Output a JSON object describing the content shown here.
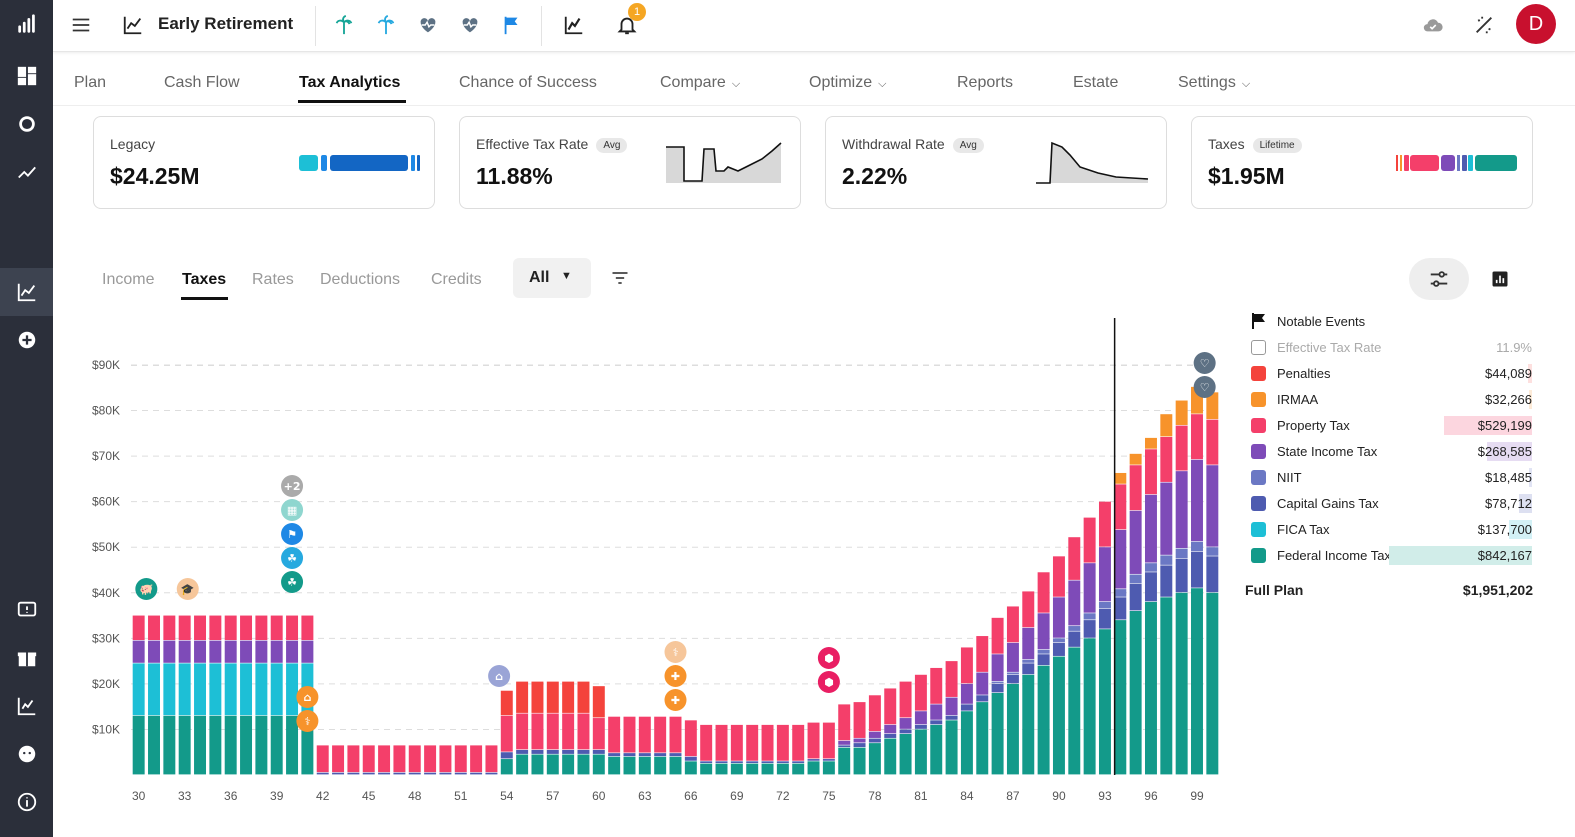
{
  "app": {
    "title": "Early Retirement",
    "notification_count": "1",
    "avatar_initial": "D"
  },
  "icons": {
    "palm": "palm-tree-icon",
    "heart": "heartbeat-icon",
    "flag": "flag-icon"
  },
  "nav": {
    "tabs": [
      {
        "label": "Plan"
      },
      {
        "label": "Cash Flow"
      },
      {
        "label": "Tax Analytics"
      },
      {
        "label": "Chance of Success"
      },
      {
        "label": "Compare"
      },
      {
        "label": "Optimize"
      },
      {
        "label": "Reports"
      },
      {
        "label": "Estate"
      },
      {
        "label": "Settings"
      }
    ],
    "active": "Tax Analytics"
  },
  "cards": [
    {
      "label": "Legacy",
      "pill": "",
      "value": "$24.25M"
    },
    {
      "label": "Effective Tax Rate",
      "pill": "Avg",
      "value": "11.88%"
    },
    {
      "label": "Withdrawal Rate",
      "pill": "Avg",
      "value": "2.22%"
    },
    {
      "label": "Taxes",
      "pill": "Lifetime",
      "value": "$1.95M"
    }
  ],
  "subtabs": [
    {
      "label": "Income"
    },
    {
      "label": "Taxes"
    },
    {
      "label": "Rates"
    },
    {
      "label": "Deductions"
    },
    {
      "label": "Credits"
    }
  ],
  "filter": {
    "selected": "All"
  },
  "legend": {
    "rows": [
      {
        "name": "Notable Events",
        "value": ""
      },
      {
        "name": "Effective Tax Rate",
        "value": "11.9%"
      },
      {
        "name": "Penalties",
        "value": "$44,089",
        "color": "#f4433c"
      },
      {
        "name": "IRMAA",
        "value": "$32,266",
        "color": "#f7932b"
      },
      {
        "name": "Property Tax",
        "value": "$529,199",
        "color": "#f43f6a"
      },
      {
        "name": "State Income Tax",
        "value": "$268,585",
        "color": "#7e4bb8"
      },
      {
        "name": "NIIT",
        "value": "$18,485",
        "color": "#6b78c4"
      },
      {
        "name": "Capital Gains Tax",
        "value": "$78,712",
        "color": "#4e5bb0"
      },
      {
        "name": "FICA Tax",
        "value": "$137,700",
        "color": "#1dbfd6"
      },
      {
        "name": "Federal Income Tax",
        "value": "$842,167",
        "color": "#139a8a"
      }
    ],
    "full_plan_label": "Full Plan",
    "full_plan_value": "$1,951,202"
  },
  "chart_data": {
    "type": "bar",
    "stacked": true,
    "x_start_age": 30,
    "x": [
      30,
      31,
      32,
      33,
      34,
      35,
      36,
      37,
      38,
      39,
      40,
      41,
      42,
      43,
      44,
      45,
      46,
      47,
      48,
      49,
      50,
      51,
      52,
      53,
      54,
      55,
      56,
      57,
      58,
      59,
      60,
      61,
      62,
      63,
      64,
      65,
      66,
      67,
      68,
      69,
      70,
      71,
      72,
      73,
      74,
      75,
      76,
      77,
      78,
      79,
      80,
      81,
      82,
      83,
      84,
      85,
      86,
      87,
      88,
      89,
      90,
      91,
      92,
      93,
      94,
      95,
      96,
      97,
      98,
      99,
      100
    ],
    "x_tick_labels": [
      "30",
      "33",
      "36",
      "39",
      "42",
      "45",
      "48",
      "51",
      "54",
      "57",
      "60",
      "63",
      "66",
      "69",
      "72",
      "75",
      "78",
      "81",
      "84",
      "87",
      "90",
      "93",
      "96",
      "99"
    ],
    "y_tick_labels": [
      "$10K",
      "$20K",
      "$30K",
      "$40K",
      "$50K",
      "$60K",
      "$70K",
      "$80K",
      "$90K"
    ],
    "ylim": [
      0,
      100000
    ],
    "grid": true,
    "series": [
      {
        "name": "Federal Income Tax",
        "color": "#139a8a",
        "values": [
          13000,
          13000,
          13000,
          13000,
          13000,
          13000,
          13000,
          13000,
          13000,
          13000,
          13000,
          13000,
          0,
          0,
          0,
          0,
          0,
          0,
          0,
          0,
          0,
          0,
          0,
          0,
          3500,
          4500,
          4500,
          4500,
          4500,
          4500,
          4500,
          4000,
          4000,
          4000,
          4000,
          4000,
          3000,
          2500,
          2500,
          2500,
          2500,
          2500,
          2500,
          2500,
          3000,
          3000,
          6000,
          6000,
          7000,
          8000,
          9000,
          10000,
          11000,
          12000,
          14000,
          16000,
          18000,
          20000,
          22000,
          24000,
          26000,
          28000,
          30000,
          32000,
          34000,
          36000,
          38000,
          39000,
          40000,
          41000,
          40000
        ]
      },
      {
        "name": "FICA Tax",
        "color": "#1dbfd6",
        "values": [
          11500,
          11500,
          11500,
          11500,
          11500,
          11500,
          11500,
          11500,
          11500,
          11500,
          11500,
          11500,
          0,
          0,
          0,
          0,
          0,
          0,
          0,
          0,
          0,
          0,
          0,
          0,
          0,
          0,
          0,
          0,
          0,
          0,
          0,
          0,
          0,
          0,
          0,
          0,
          0,
          0,
          0,
          0,
          0,
          0,
          0,
          0,
          0,
          0,
          0,
          0,
          0,
          0,
          0,
          0,
          0,
          0,
          0,
          0,
          0,
          0,
          0,
          0,
          0,
          0,
          0,
          0,
          0,
          0,
          0,
          0,
          0,
          0,
          0
        ]
      },
      {
        "name": "Capital Gains Tax",
        "color": "#4e5bb0",
        "values": [
          0,
          0,
          0,
          0,
          0,
          0,
          0,
          0,
          0,
          0,
          0,
          0,
          500,
          500,
          500,
          500,
          500,
          500,
          500,
          500,
          500,
          500,
          500,
          500,
          1500,
          1000,
          1000,
          1000,
          1000,
          1000,
          1000,
          800,
          800,
          800,
          800,
          800,
          1000,
          500,
          500,
          500,
          500,
          500,
          500,
          500,
          500,
          500,
          500,
          1000,
          1000,
          1000,
          1000,
          1000,
          1000,
          1000,
          1500,
          1500,
          2000,
          2000,
          2500,
          2500,
          3000,
          3500,
          4000,
          4500,
          5000,
          6000,
          6500,
          7000,
          7500,
          8000,
          8000
        ]
      },
      {
        "name": "NIIT",
        "color": "#6b78c4",
        "values": [
          0,
          0,
          0,
          0,
          0,
          0,
          0,
          0,
          0,
          0,
          0,
          0,
          0,
          0,
          0,
          0,
          0,
          0,
          0,
          0,
          0,
          0,
          0,
          0,
          0,
          0,
          0,
          0,
          0,
          0,
          0,
          0,
          0,
          0,
          0,
          0,
          0,
          0,
          0,
          0,
          0,
          0,
          0,
          0,
          0,
          0,
          0,
          0,
          0,
          0,
          0,
          0,
          0,
          0,
          0,
          0,
          500,
          500,
          800,
          1000,
          1000,
          1200,
          1500,
          1500,
          1800,
          2000,
          2000,
          2200,
          2200,
          2200,
          2000
        ]
      },
      {
        "name": "State Income Tax",
        "color": "#7e4bb8",
        "values": [
          5000,
          5000,
          5000,
          5000,
          5000,
          5000,
          5000,
          5000,
          5000,
          5000,
          5000,
          5000,
          0,
          0,
          0,
          0,
          0,
          0,
          0,
          0,
          0,
          0,
          0,
          0,
          0,
          0,
          0,
          0,
          0,
          0,
          0,
          0,
          0,
          0,
          0,
          0,
          0,
          0,
          0,
          0,
          0,
          0,
          0,
          0,
          0,
          0,
          1000,
          1000,
          1500,
          2000,
          2500,
          3000,
          3500,
          4000,
          4500,
          5000,
          6000,
          6500,
          7000,
          8000,
          9000,
          10000,
          11000,
          12000,
          13000,
          14000,
          15000,
          16000,
          17000,
          18000,
          18000
        ]
      },
      {
        "name": "Property Tax",
        "color": "#f43f6a",
        "values": [
          5500,
          5500,
          5500,
          5500,
          5500,
          5500,
          5500,
          5500,
          5500,
          5500,
          5500,
          5500,
          6000,
          6000,
          6000,
          6000,
          6000,
          6000,
          6000,
          6000,
          6000,
          6000,
          6000,
          6000,
          8000,
          8000,
          8000,
          8000,
          8000,
          8000,
          7000,
          8000,
          8000,
          8000,
          8000,
          8000,
          8000,
          8000,
          8000,
          8000,
          8000,
          8000,
          8000,
          8000,
          8000,
          8000,
          8000,
          8000,
          8000,
          8000,
          8000,
          8000,
          8000,
          8000,
          8000,
          8000,
          8000,
          8000,
          8000,
          9000,
          9000,
          9500,
          10000,
          10000,
          10000,
          10000,
          10000,
          10000,
          10000,
          10000,
          10000
        ]
      },
      {
        "name": "Penalties",
        "color": "#f4433c",
        "values": [
          0,
          0,
          0,
          0,
          0,
          0,
          0,
          0,
          0,
          0,
          0,
          0,
          0,
          0,
          0,
          0,
          0,
          0,
          0,
          0,
          0,
          0,
          0,
          0,
          5500,
          7000,
          7000,
          7000,
          7000,
          7000,
          7000,
          0,
          0,
          0,
          0,
          0,
          0,
          0,
          0,
          0,
          0,
          0,
          0,
          0,
          0,
          0,
          0,
          0,
          0,
          0,
          0,
          0,
          0,
          0,
          0,
          0,
          0,
          0,
          0,
          0,
          0,
          0,
          0,
          0,
          0,
          0,
          0,
          0,
          0,
          0,
          0
        ]
      },
      {
        "name": "IRMAA",
        "color": "#f7932b",
        "values": [
          0,
          0,
          0,
          0,
          0,
          0,
          0,
          0,
          0,
          0,
          0,
          0,
          0,
          0,
          0,
          0,
          0,
          0,
          0,
          0,
          0,
          0,
          0,
          0,
          0,
          0,
          0,
          0,
          0,
          0,
          0,
          0,
          0,
          0,
          0,
          0,
          0,
          0,
          0,
          0,
          0,
          0,
          0,
          0,
          0,
          0,
          0,
          0,
          0,
          0,
          0,
          0,
          0,
          0,
          0,
          0,
          0,
          0,
          0,
          0,
          0,
          0,
          0,
          0,
          2500,
          2500,
          2500,
          5000,
          5500,
          6000,
          6000
        ]
      }
    ]
  }
}
